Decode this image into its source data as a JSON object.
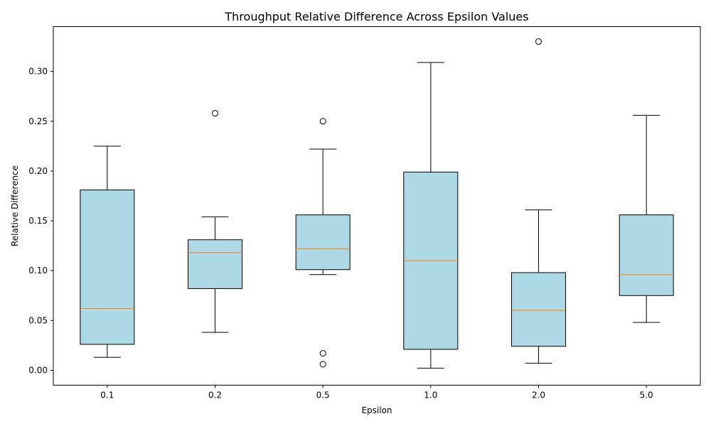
{
  "chart_data": {
    "type": "box",
    "title": "Throughput Relative Difference Across Epsilon Values",
    "xlabel": "Epsilon",
    "ylabel": "Relative Difference",
    "categories": [
      "0.1",
      "0.2",
      "0.5",
      "1.0",
      "2.0",
      "5.0"
    ],
    "ylim": [
      -0.015,
      0.345
    ],
    "yticks": [
      0.0,
      0.05,
      0.1,
      0.15,
      0.2,
      0.25,
      0.3
    ],
    "ytick_labels": [
      "0.00",
      "0.05",
      "0.10",
      "0.15",
      "0.20",
      "0.25",
      "0.30"
    ],
    "grid": false,
    "box_fill_color": "#add8e6",
    "median_color": "#ff7f0e",
    "boxes": [
      {
        "category": "0.1",
        "whisker_low": 0.013,
        "q1": 0.026,
        "median": 0.062,
        "q3": 0.181,
        "whisker_high": 0.225,
        "outliers": []
      },
      {
        "category": "0.2",
        "whisker_low": 0.038,
        "q1": 0.082,
        "median": 0.118,
        "q3": 0.131,
        "whisker_high": 0.154,
        "outliers": [
          0.258
        ]
      },
      {
        "category": "0.5",
        "whisker_low": 0.096,
        "q1": 0.101,
        "median": 0.122,
        "q3": 0.156,
        "whisker_high": 0.222,
        "outliers": [
          0.25,
          0.017,
          0.006
        ]
      },
      {
        "category": "1.0",
        "whisker_low": 0.002,
        "q1": 0.021,
        "median": 0.11,
        "q3": 0.199,
        "whisker_high": 0.309,
        "outliers": []
      },
      {
        "category": "2.0",
        "whisker_low": 0.007,
        "q1": 0.024,
        "median": 0.06,
        "q3": 0.098,
        "whisker_high": 0.161,
        "outliers": [
          0.33
        ]
      },
      {
        "category": "5.0",
        "whisker_low": 0.048,
        "q1": 0.075,
        "median": 0.096,
        "q3": 0.156,
        "whisker_high": 0.256,
        "outliers": []
      }
    ]
  }
}
